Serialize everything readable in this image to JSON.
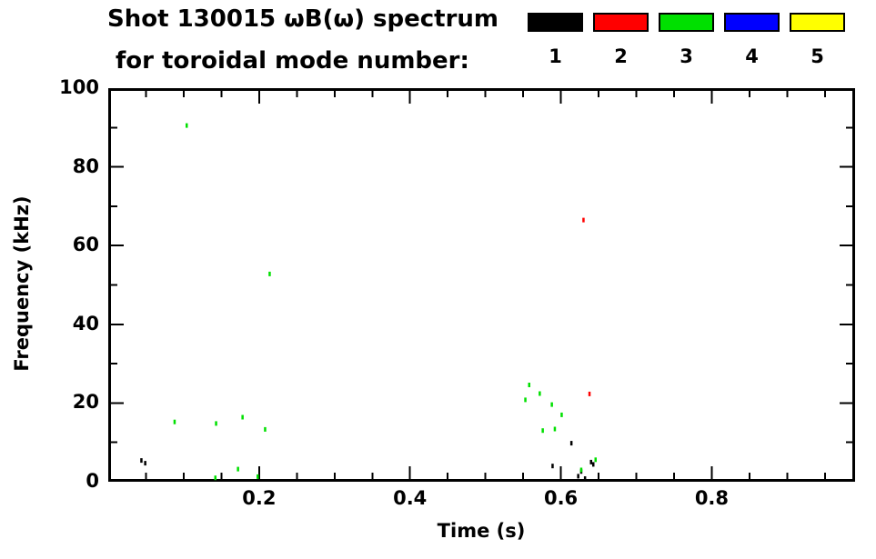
{
  "title": {
    "line1": "Shot 130015 ωB(ω) spectrum",
    "line2": "for toroidal mode number:"
  },
  "legend": {
    "modes": [
      {
        "label": "1",
        "color": "#000000"
      },
      {
        "label": "2",
        "color": "#ff0000"
      },
      {
        "label": "3",
        "color": "#00e000"
      },
      {
        "label": "4",
        "color": "#0000ff"
      },
      {
        "label": "5",
        "color": "#ffff00"
      }
    ]
  },
  "chart_data": {
    "type": "scatter",
    "title": "Shot 130015 ωB(ω) spectrum for toroidal mode number: 1 2 3 4 5",
    "xlabel": "Time (s)",
    "ylabel": "Frequency (kHz)",
    "xlim": [
      0,
      0.99
    ],
    "ylim": [
      0,
      100
    ],
    "grid": false,
    "legend_position": "top-right",
    "x_major_ticks": [
      {
        "v": 0.2,
        "label": "0.2"
      },
      {
        "v": 0.4,
        "label": "0.4"
      },
      {
        "v": 0.6,
        "label": "0.6"
      },
      {
        "v": 0.8,
        "label": "0.8"
      }
    ],
    "x_minor_step": 0.05,
    "y_major_ticks": [
      {
        "v": 0,
        "label": "0"
      },
      {
        "v": 20,
        "label": "20"
      },
      {
        "v": 40,
        "label": "40"
      },
      {
        "v": 60,
        "label": "60"
      },
      {
        "v": 80,
        "label": "80"
      },
      {
        "v": 100,
        "label": "100"
      }
    ],
    "y_minor_step": 10,
    "series": [
      {
        "name": "n=1",
        "color": "#000000",
        "points": [
          [
            0.044,
            5.4
          ],
          [
            0.049,
            4.7
          ],
          [
            0.589,
            4.0
          ],
          [
            0.614,
            9.8
          ],
          [
            0.623,
            1.4
          ],
          [
            0.627,
            2.6
          ],
          [
            0.632,
            0.8
          ],
          [
            0.64,
            5.0
          ],
          [
            0.643,
            4.4
          ]
        ]
      },
      {
        "name": "n=2",
        "color": "#ff0000",
        "points": [
          [
            0.63,
            66.5
          ],
          [
            0.638,
            22.3
          ]
        ]
      },
      {
        "name": "n=3",
        "color": "#00e000",
        "points": [
          [
            0.104,
            90.5
          ],
          [
            0.214,
            52.8
          ],
          [
            0.088,
            15.2
          ],
          [
            0.143,
            14.8
          ],
          [
            0.178,
            16.4
          ],
          [
            0.208,
            13.3
          ],
          [
            0.142,
            1.0
          ],
          [
            0.172,
            3.2
          ],
          [
            0.198,
            1.3
          ],
          [
            0.553,
            20.8
          ],
          [
            0.558,
            24.6
          ],
          [
            0.572,
            22.4
          ],
          [
            0.588,
            19.6
          ],
          [
            0.576,
            13.0
          ],
          [
            0.592,
            13.4
          ],
          [
            0.601,
            17.0
          ],
          [
            0.627,
            3.0
          ],
          [
            0.646,
            5.6
          ]
        ]
      },
      {
        "name": "n=4",
        "color": "#0000ff",
        "points": []
      },
      {
        "name": "n=5",
        "color": "#ffff00",
        "points": []
      }
    ]
  }
}
